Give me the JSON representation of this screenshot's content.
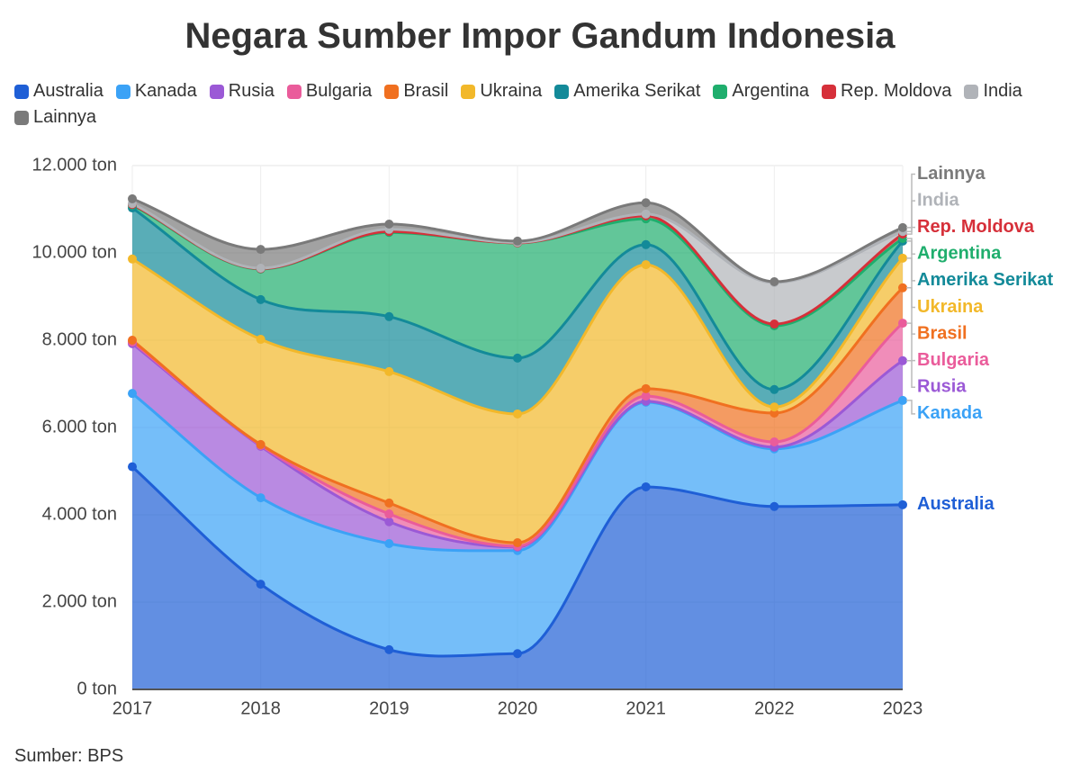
{
  "chart_data": {
    "type": "stacked-area",
    "title": "Negara Sumber Impor Gandum Indonesia",
    "source": "Sumber: BPS",
    "categories": [
      "2017",
      "2018",
      "2019",
      "2020",
      "2021",
      "2022",
      "2023"
    ],
    "ylim": [
      0,
      12000
    ],
    "yticks": [
      {
        "value": 0,
        "label": "0 ton"
      },
      {
        "value": 2000,
        "label": "2.000 ton"
      },
      {
        "value": 4000,
        "label": "4.000 ton"
      },
      {
        "value": 6000,
        "label": "6.000 ton"
      },
      {
        "value": 8000,
        "label": "8.000 ton"
      },
      {
        "value": 10000,
        "label": "10.000 ton"
      },
      {
        "value": 12000,
        "label": "12.000 ton"
      }
    ],
    "grid": true,
    "series": [
      {
        "name": "Australia",
        "color": "#1f5fd6",
        "values": [
          5100,
          2410,
          910,
          820,
          4640,
          4190,
          4230
        ]
      },
      {
        "name": "Kanada",
        "color": "#3ba2f6",
        "values": [
          1680,
          1980,
          2430,
          2360,
          1940,
          1320,
          2390
        ]
      },
      {
        "name": "Rusia",
        "color": "#9b59d6",
        "values": [
          1140,
          1180,
          500,
          80,
          20,
          40,
          910
        ]
      },
      {
        "name": "Bulgaria",
        "color": "#ea5c9b",
        "values": [
          40,
          20,
          180,
          20,
          120,
          120,
          860
        ]
      },
      {
        "name": "Brasil",
        "color": "#f07020",
        "values": [
          40,
          20,
          250,
          80,
          170,
          660,
          810
        ]
      },
      {
        "name": "Ukraina",
        "color": "#f2b82a",
        "values": [
          1860,
          2410,
          3010,
          2950,
          2840,
          140,
          680
        ]
      },
      {
        "name": "Amerika Serikat",
        "color": "#138a99",
        "values": [
          1170,
          910,
          1260,
          1280,
          460,
          400,
          390
        ]
      },
      {
        "name": "Argentina",
        "color": "#1fae6d",
        "values": [
          60,
          700,
          1930,
          2640,
          590,
          1460,
          60
        ]
      },
      {
        "name": "Rep. Moldova",
        "color": "#d6303a",
        "values": [
          20,
          10,
          20,
          0,
          70,
          40,
          100
        ]
      },
      {
        "name": "India",
        "color": "#b0b3b8",
        "values": [
          20,
          10,
          50,
          10,
          40,
          950,
          60
        ]
      },
      {
        "name": "Lainnya",
        "color": "#7a7a7a",
        "values": [
          110,
          430,
          120,
          30,
          260,
          20,
          90
        ]
      }
    ]
  }
}
